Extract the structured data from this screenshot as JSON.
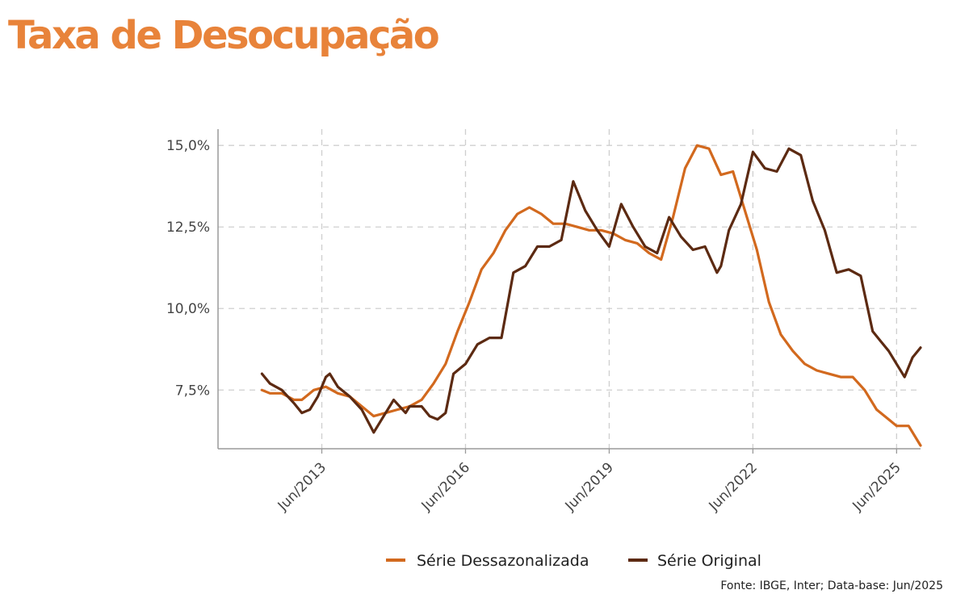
{
  "page": {
    "title": "Taxa de Desocupação",
    "title_color": "#E8833A",
    "source": "Fonte: IBGE, Inter; Data-base: Jun/2025"
  },
  "chart_data": {
    "type": "line",
    "title": "Taxa de Desocupação",
    "xlabel": "",
    "ylabel": "",
    "y_tick_labels": [
      "15,0%",
      "12,5%",
      "10,0%",
      "7,5%"
    ],
    "y_ticks": [
      15.0,
      12.5,
      10.0,
      7.5
    ],
    "ylim": [
      5.7,
      15.5
    ],
    "x_tick_labels": [
      "Jun/2013",
      "Jun/2016",
      "Jun/2019",
      "Jun/2022",
      "Jun/2025"
    ],
    "x_ticks": [
      "2013-06",
      "2016-06",
      "2019-06",
      "2022-06",
      "2025-06"
    ],
    "xlim": [
      "2011-04",
      "2025-12"
    ],
    "grid": true,
    "legend_position": "bottom",
    "series": [
      {
        "name": "Série Dessazonalizada",
        "color": "#D2691E",
        "points": [
          [
            "2012-03",
            7.5
          ],
          [
            "2012-05",
            7.4
          ],
          [
            "2012-08",
            7.4
          ],
          [
            "2012-11",
            7.2
          ],
          [
            "2013-01",
            7.2
          ],
          [
            "2013-04",
            7.5
          ],
          [
            "2013-07",
            7.6
          ],
          [
            "2013-10",
            7.4
          ],
          [
            "2014-01",
            7.3
          ],
          [
            "2014-04",
            7.0
          ],
          [
            "2014-07",
            6.7
          ],
          [
            "2014-10",
            6.8
          ],
          [
            "2015-01",
            6.9
          ],
          [
            "2015-04",
            7.0
          ],
          [
            "2015-07",
            7.2
          ],
          [
            "2015-10",
            7.7
          ],
          [
            "2016-01",
            8.3
          ],
          [
            "2016-04",
            9.3
          ],
          [
            "2016-07",
            10.2
          ],
          [
            "2016-10",
            11.2
          ],
          [
            "2017-01",
            11.7
          ],
          [
            "2017-04",
            12.4
          ],
          [
            "2017-07",
            12.9
          ],
          [
            "2017-10",
            13.1
          ],
          [
            "2018-01",
            12.9
          ],
          [
            "2018-04",
            12.6
          ],
          [
            "2018-07",
            12.6
          ],
          [
            "2018-10",
            12.5
          ],
          [
            "2019-01",
            12.4
          ],
          [
            "2019-04",
            12.4
          ],
          [
            "2019-07",
            12.3
          ],
          [
            "2019-10",
            12.1
          ],
          [
            "2020-01",
            12.0
          ],
          [
            "2020-04",
            11.7
          ],
          [
            "2020-07",
            11.5
          ],
          [
            "2020-10",
            12.8
          ],
          [
            "2021-01",
            14.3
          ],
          [
            "2021-04",
            15.0
          ],
          [
            "2021-07",
            14.9
          ],
          [
            "2021-10",
            14.1
          ],
          [
            "2022-01",
            14.2
          ],
          [
            "2022-04",
            13.0
          ],
          [
            "2022-07",
            11.8
          ],
          [
            "2022-10",
            10.2
          ],
          [
            "2023-01",
            9.2
          ],
          [
            "2023-04",
            8.7
          ],
          [
            "2023-07",
            8.3
          ],
          [
            "2023-10",
            8.1
          ],
          [
            "2024-01",
            8.0
          ],
          [
            "2024-04",
            7.9
          ],
          [
            "2024-07",
            7.9
          ],
          [
            "2024-10",
            7.5
          ],
          [
            "2025-01",
            6.9
          ],
          [
            "2025-04",
            6.6
          ],
          [
            "2025-06",
            6.4
          ],
          [
            "2025-09",
            6.4
          ],
          [
            "2025-12",
            5.8
          ]
        ]
      },
      {
        "name": "Série Original",
        "color": "#5C2A12",
        "points": [
          [
            "2012-03",
            8.0
          ],
          [
            "2012-05",
            7.7
          ],
          [
            "2012-08",
            7.5
          ],
          [
            "2012-11",
            7.1
          ],
          [
            "2013-01",
            6.8
          ],
          [
            "2013-03",
            6.9
          ],
          [
            "2013-05",
            7.3
          ],
          [
            "2013-07",
            7.9
          ],
          [
            "2013-08",
            8.0
          ],
          [
            "2013-10",
            7.6
          ],
          [
            "2014-01",
            7.3
          ],
          [
            "2014-04",
            6.9
          ],
          [
            "2014-07",
            6.2
          ],
          [
            "2014-10",
            6.8
          ],
          [
            "2014-12",
            7.2
          ],
          [
            "2015-03",
            6.8
          ],
          [
            "2015-04",
            7.0
          ],
          [
            "2015-07",
            7.0
          ],
          [
            "2015-09",
            6.7
          ],
          [
            "2015-11",
            6.6
          ],
          [
            "2016-01",
            6.8
          ],
          [
            "2016-03",
            8.0
          ],
          [
            "2016-06",
            8.3
          ],
          [
            "2016-09",
            8.9
          ],
          [
            "2016-12",
            9.1
          ],
          [
            "2017-03",
            9.1
          ],
          [
            "2017-06",
            11.1
          ],
          [
            "2017-09",
            11.3
          ],
          [
            "2017-12",
            11.9
          ],
          [
            "2018-03",
            11.9
          ],
          [
            "2018-06",
            12.1
          ],
          [
            "2018-09",
            13.9
          ],
          [
            "2018-12",
            13.0
          ],
          [
            "2019-03",
            12.4
          ],
          [
            "2019-06",
            11.9
          ],
          [
            "2019-09",
            13.2
          ],
          [
            "2019-12",
            12.5
          ],
          [
            "2020-03",
            11.9
          ],
          [
            "2020-06",
            11.7
          ],
          [
            "2020-09",
            12.8
          ],
          [
            "2020-12",
            12.2
          ],
          [
            "2021-03",
            11.8
          ],
          [
            "2021-06",
            11.9
          ],
          [
            "2021-09",
            11.1
          ],
          [
            "2021-10",
            11.3
          ],
          [
            "2021-12",
            12.4
          ],
          [
            "2022-03",
            13.2
          ],
          [
            "2022-06",
            14.8
          ],
          [
            "2022-09",
            14.3
          ],
          [
            "2022-12",
            14.2
          ],
          [
            "2023-03",
            14.9
          ],
          [
            "2023-06",
            14.7
          ],
          [
            "2023-09",
            13.3
          ],
          [
            "2023-12",
            12.4
          ],
          [
            "2024-03",
            11.1
          ],
          [
            "2024-06",
            11.2
          ],
          [
            "2024-09",
            11.0
          ],
          [
            "2024-12",
            9.3
          ],
          [
            "2025-02",
            9.0
          ],
          [
            "2025-04",
            8.7
          ],
          [
            "2025-06",
            8.3
          ],
          [
            "2025-08",
            7.9
          ],
          [
            "2025-10",
            8.5
          ],
          [
            "2025-12",
            8.8
          ]
        ]
      }
    ]
  }
}
